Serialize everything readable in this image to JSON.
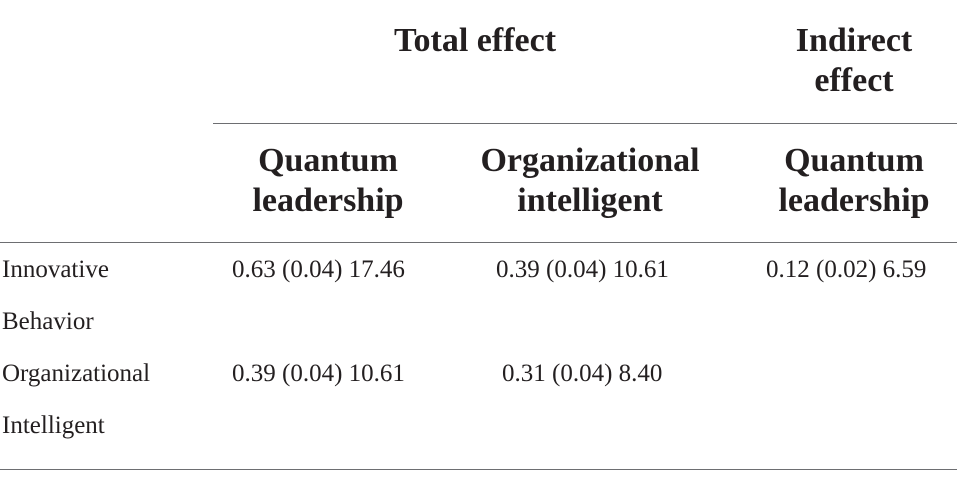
{
  "table": {
    "group_headers": {
      "total_effect": "Total effect",
      "indirect_effect": "Indirect effect"
    },
    "column_headers": [
      "Quantum leadership",
      "Organizational intelligent",
      "Quantum leadership"
    ],
    "rows": [
      {
        "label": "Innovative Behavior",
        "values": [
          "0.63 (0.04) 17.46",
          "0.39 (0.04) 10.61",
          "0.12 (0.02) 6.59"
        ]
      },
      {
        "label": "Organizational Intelligent",
        "values": [
          "0.39 (0.04) 10.61",
          "0.31 (0.04) 8.40",
          ""
        ]
      }
    ]
  }
}
